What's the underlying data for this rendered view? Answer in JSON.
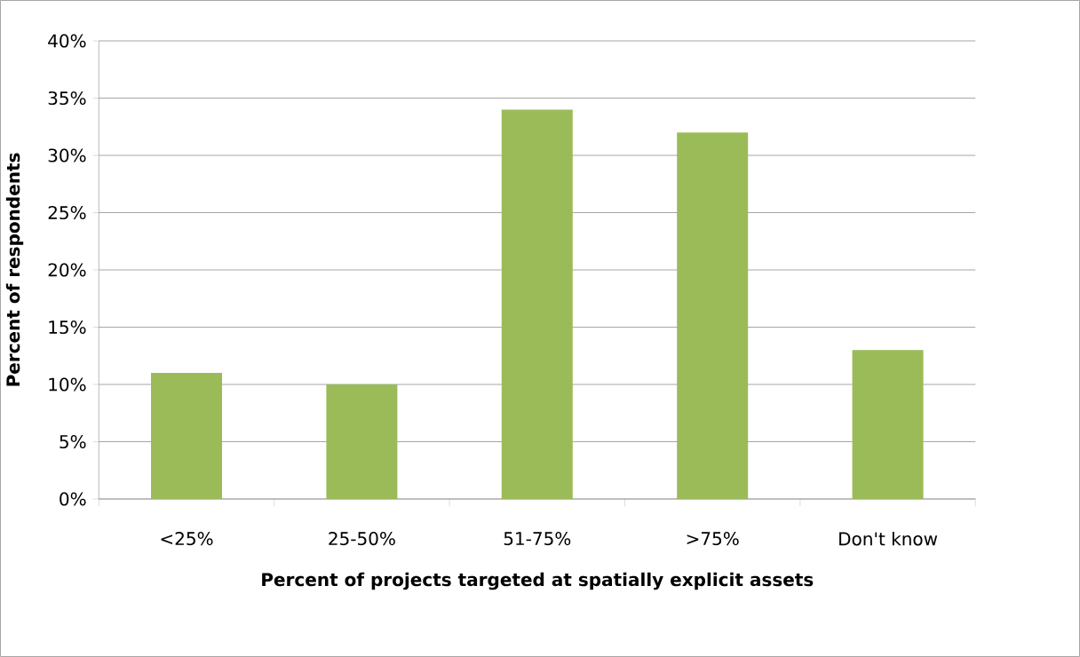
{
  "chart_data": {
    "type": "bar",
    "xlabel": "Percent of projects targeted at spatially explicit assets",
    "ylabel": "Percent of respondents",
    "categories": [
      "<25%",
      "25-50%",
      "51-75%",
      ">75%",
      "Don't know"
    ],
    "values": [
      11,
      10,
      34,
      32,
      13
    ],
    "color": "#9bbb59",
    "ylim": [
      0,
      40
    ],
    "yticks": [
      {
        "value": 0,
        "label": "0%"
      },
      {
        "value": 5,
        "label": "5%"
      },
      {
        "value": 10,
        "label": "10%"
      },
      {
        "value": 15,
        "label": "15%"
      },
      {
        "value": 20,
        "label": "20%"
      },
      {
        "value": 25,
        "label": "25%"
      },
      {
        "value": 30,
        "label": "30%"
      },
      {
        "value": 35,
        "label": "35%"
      },
      {
        "value": 40,
        "label": "40%"
      }
    ],
    "grid": "y"
  }
}
